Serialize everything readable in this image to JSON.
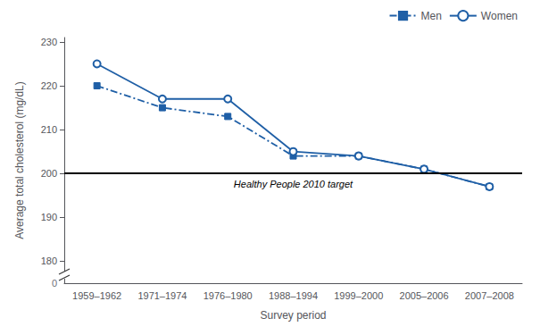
{
  "chart_data": {
    "type": "line",
    "categories": [
      "1959–1962",
      "1971–1974",
      "1976–1980",
      "1988–1994",
      "1999–2000",
      "2005–2006",
      "2007–2008"
    ],
    "series": [
      {
        "name": "Men",
        "color": "#1f5fa6",
        "marker": "square",
        "line_style": "dashdot",
        "values": [
          220,
          215,
          213,
          204,
          204,
          201,
          197
        ]
      },
      {
        "name": "Women",
        "color": "#1f5fa6",
        "marker": "open_circle",
        "line_style": "solid",
        "values": [
          225,
          217,
          217,
          205,
          204,
          201,
          197
        ]
      }
    ],
    "xlabel": "Survey period",
    "ylabel": "Average total cholesterol (mg/dL)",
    "ylim": [
      175,
      231
    ],
    "yticks": [
      180,
      190,
      200,
      210,
      220,
      230
    ],
    "grid": false,
    "legend": "upper right",
    "annotations": [
      {
        "text": "Healthy People 2010 target",
        "y": 200
      },
      {
        "text": "0",
        "kind": "axis_break"
      }
    ]
  }
}
